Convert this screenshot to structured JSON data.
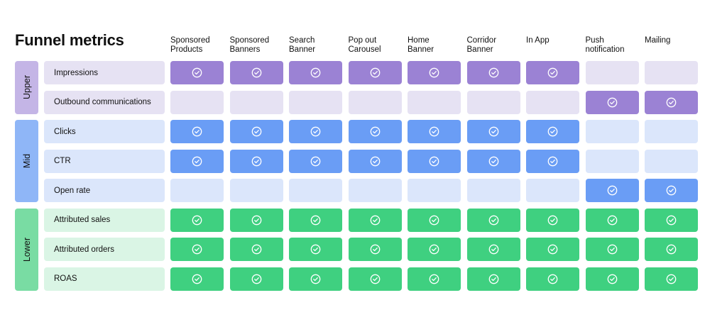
{
  "title": "Funnel metrics",
  "columns": [
    "Sponsored Products",
    "Sponsored Banners",
    "Search Banner",
    "Pop out Carousel",
    "Home Banner",
    "Corridor Banner",
    "In App",
    "Push notification",
    "Mailing"
  ],
  "columns_display": [
    [
      "Sponsored",
      "Products"
    ],
    [
      "Sponsored",
      "Banners"
    ],
    [
      "Search",
      "Banner"
    ],
    [
      "Pop out",
      "Carousel"
    ],
    [
      "Home",
      "Banner"
    ],
    [
      "Corridor",
      "Banner"
    ],
    [
      "In App"
    ],
    [
      "Push",
      "notification"
    ],
    [
      "Mailing"
    ]
  ],
  "stages": [
    {
      "name": "Upper",
      "stage_color": "#c4b5e6",
      "label_color": "#e6e2f3",
      "empty_color": "#e6e2f3",
      "filled_color": "#9b82d4",
      "metrics": [
        {
          "label": "Impressions",
          "checks": [
            1,
            1,
            1,
            1,
            1,
            1,
            1,
            0,
            0
          ]
        },
        {
          "label": "Outbound communications",
          "checks": [
            0,
            0,
            0,
            0,
            0,
            0,
            0,
            1,
            1
          ]
        }
      ]
    },
    {
      "name": "Mid",
      "stage_color": "#8fb6f7",
      "label_color": "#dbe6fb",
      "empty_color": "#dbe6fb",
      "filled_color": "#6a9df5",
      "metrics": [
        {
          "label": "Clicks",
          "checks": [
            1,
            1,
            1,
            1,
            1,
            1,
            1,
            0,
            0
          ]
        },
        {
          "label": "CTR",
          "checks": [
            1,
            1,
            1,
            1,
            1,
            1,
            1,
            0,
            0
          ]
        },
        {
          "label": "Open rate",
          "checks": [
            0,
            0,
            0,
            0,
            0,
            0,
            0,
            1,
            1
          ]
        }
      ]
    },
    {
      "name": "Lower",
      "stage_color": "#79dca3",
      "label_color": "#daf5e5",
      "empty_color": "#daf5e5",
      "filled_color": "#3fd080",
      "metrics": [
        {
          "label": "Attributed sales",
          "checks": [
            1,
            1,
            1,
            1,
            1,
            1,
            1,
            1,
            1
          ]
        },
        {
          "label": "Attributed orders",
          "checks": [
            1,
            1,
            1,
            1,
            1,
            1,
            1,
            1,
            1
          ]
        },
        {
          "label": "ROAS",
          "checks": [
            1,
            1,
            1,
            1,
            1,
            1,
            1,
            1,
            1
          ]
        }
      ]
    }
  ],
  "icon": "check-circle-icon"
}
